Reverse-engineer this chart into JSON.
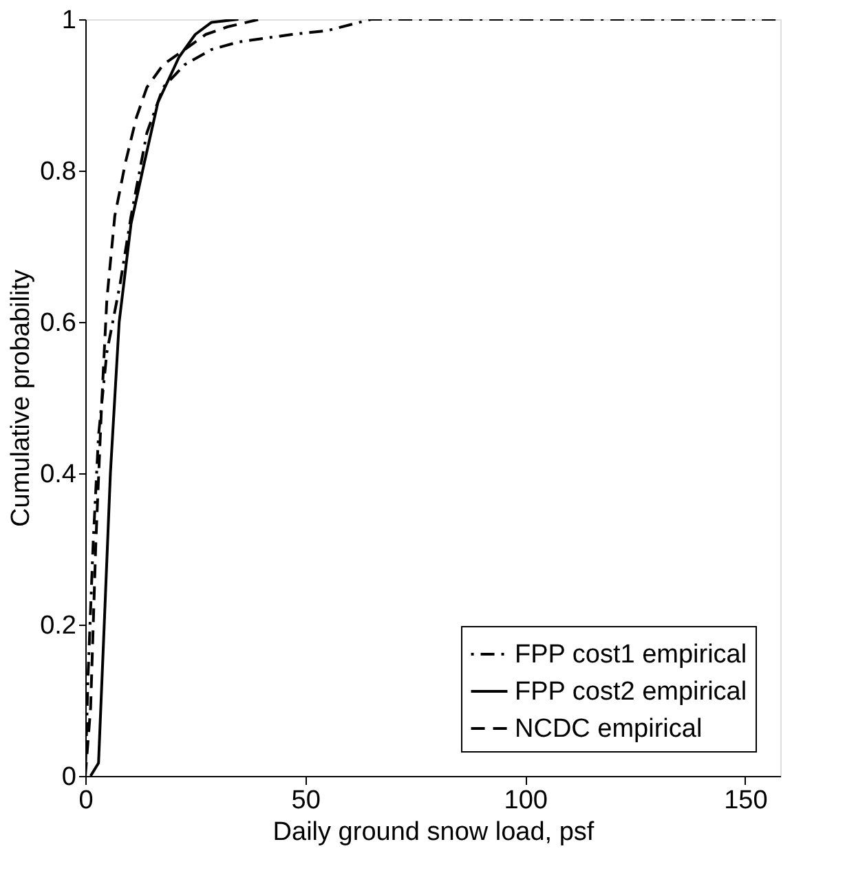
{
  "chart_data": {
    "type": "line",
    "xlabel": "Daily ground snow load, psf",
    "ylabel": "Cumulative probability",
    "xlim": [
      0,
      158
    ],
    "xticks": [
      0,
      50,
      100,
      150
    ],
    "ylim": [
      0,
      1
    ],
    "yticks": [
      0,
      0.2,
      0.4,
      0.6,
      0.8,
      1
    ],
    "grid": false,
    "legend": "bottom right",
    "series": [
      {
        "name": "FPP cost1 empirical",
        "color": "#000000",
        "line_style": "dashdot",
        "x": [
          0,
          0.6,
          1.8,
          3,
          4.9,
          7.9,
          10.4,
          14,
          17.7,
          22.6,
          28.7,
          34.8,
          47,
          55,
          65,
          158
        ],
        "values": [
          0,
          0.13,
          0.31,
          0.45,
          0.56,
          0.65,
          0.74,
          0.85,
          0.91,
          0.94,
          0.96,
          0.97,
          0.98,
          0.985,
          1,
          1
        ]
      },
      {
        "name": "FPP cost2 empirical",
        "color": "#000000",
        "line_style": "solid",
        "x": [
          1.2,
          3,
          4.3,
          5.7,
          7.7,
          10.4,
          13.4,
          16.5,
          21.3,
          25,
          28.7,
          34.8
        ],
        "values": [
          0,
          0.017,
          0.2,
          0.4,
          0.6,
          0.73,
          0.81,
          0.89,
          0.95,
          0.98,
          0.996,
          1
        ]
      },
      {
        "name": "NCDC empirical",
        "color": "#000000",
        "line_style": "dashed",
        "x": [
          0,
          1.2,
          2.4,
          3.7,
          4.9,
          6.7,
          9.1,
          11.6,
          14,
          17.7,
          22.6,
          27.4,
          32.3,
          39.6
        ],
        "values": [
          0,
          0.09,
          0.31,
          0.49,
          0.63,
          0.74,
          0.81,
          0.87,
          0.91,
          0.94,
          0.96,
          0.98,
          0.99,
          1
        ]
      }
    ]
  }
}
